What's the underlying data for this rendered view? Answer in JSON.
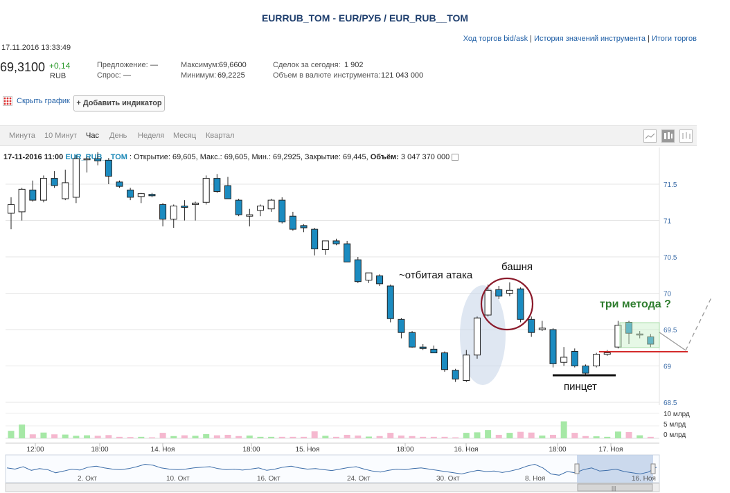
{
  "header": {
    "title": "EURRUB_TOM - EUR/РУБ / EUR_RUB__TOM",
    "links": [
      "Ход торгов bid/ask",
      "История значений инструмента",
      "Итоги торгов"
    ],
    "datetime": "17.11.2016 13:33:49"
  },
  "quote": {
    "price": "69,3100",
    "change": "+0,14",
    "currency": "RUB",
    "offer_label": "Предложение:",
    "offer_value": "—",
    "demand_label": "Спрос:",
    "demand_value": "—",
    "max_label": "Максимум:",
    "max_value": "69,6600",
    "min_label": "Минимум:",
    "min_value": "69,2225",
    "deals_label": "Сделок за сегодня:",
    "deals_value": "1 902",
    "volume_label": "Объем в валюте инструмента:",
    "volume_value": "121 043 000"
  },
  "toolbar": {
    "hide_chart": "Скрыть график",
    "add_indicator": "+ Добавить индикатор"
  },
  "tabs": [
    "Минута",
    "10 Минут",
    "Час",
    "День",
    "Неделя",
    "Месяц",
    "Квартал"
  ],
  "active_tab": "Час",
  "ohlc_line": {
    "date": "17-11-2016 11:00",
    "instrument": "EUR_RUB__TOM",
    "text": ": Открытие: 69,605, Макс.: 69,605, Мин.: 69,2925, Закрытие: 69,445,",
    "volume_label": "Объём:",
    "volume_value": "3 047 370 000"
  },
  "annotations": {
    "repelled_attack": "~отбитая атака",
    "tower": "башня",
    "three_methods": "три метода ?",
    "tweezer": "пинцет"
  },
  "colors": {
    "up_fill": "#ffffff",
    "down_fill": "#1b8bc0",
    "candle_stroke": "#222222",
    "vol_up": "#a6e8a6",
    "vol_down": "#f5b8cf",
    "annotation_green": "#2e7d2e",
    "support_line": "#d42a2a",
    "circle": "#8b1a2b",
    "ellipse": "#c5d3e8",
    "navigator_line": "#3b6ca8"
  },
  "chart_data": {
    "type": "candlestick",
    "timeframe": "1 hour",
    "ylim": [
      68.5,
      72
    ],
    "y_ticks": [
      "71.5",
      "71",
      "70.5",
      "70",
      "69.5",
      "69",
      "68.5"
    ],
    "x_tick_labels": [
      "12:00",
      "18:00",
      "14. Ноя",
      "18:00",
      "15. Ноя",
      "18:00",
      "16. Ноя",
      "18:00",
      "17. Ноя"
    ],
    "volume_axis_labels": [
      "10 млрд",
      "5 млрд",
      "0 млрд"
    ],
    "navigator_labels": [
      "2. Окт",
      "10. Окт",
      "16. Окт",
      "24. Окт",
      "30. Окт",
      "8. Ноя",
      "16. Ноя"
    ],
    "candles": [
      {
        "o": 71.1,
        "h": 71.32,
        "l": 70.88,
        "c": 71.22
      },
      {
        "o": 71.12,
        "h": 71.45,
        "l": 71.0,
        "c": 71.43
      },
      {
        "o": 71.42,
        "h": 71.55,
        "l": 71.26,
        "c": 71.28
      },
      {
        "o": 71.28,
        "h": 71.62,
        "l": 71.25,
        "c": 71.58
      },
      {
        "o": 71.58,
        "h": 71.68,
        "l": 71.45,
        "c": 71.48
      },
      {
        "o": 71.3,
        "h": 71.7,
        "l": 71.28,
        "c": 71.52
      },
      {
        "o": 71.32,
        "h": 71.9,
        "l": 71.24,
        "c": 71.85
      },
      {
        "o": 71.85,
        "h": 71.88,
        "l": 71.66,
        "c": 71.85
      },
      {
        "o": 71.85,
        "h": 71.94,
        "l": 71.76,
        "c": 71.82
      },
      {
        "o": 71.83,
        "h": 71.86,
        "l": 71.5,
        "c": 71.61
      },
      {
        "o": 71.53,
        "h": 71.55,
        "l": 71.45,
        "c": 71.47
      },
      {
        "o": 71.42,
        "h": 71.45,
        "l": 71.28,
        "c": 71.32
      },
      {
        "o": 71.33,
        "h": 71.38,
        "l": 71.24,
        "c": 71.37
      },
      {
        "o": 71.36,
        "h": 71.38,
        "l": 71.32,
        "c": 71.34
      },
      {
        "o": 71.22,
        "h": 71.24,
        "l": 70.92,
        "c": 71.02
      },
      {
        "o": 71.02,
        "h": 71.22,
        "l": 70.9,
        "c": 71.2
      },
      {
        "o": 71.2,
        "h": 71.28,
        "l": 71.0,
        "c": 71.18
      },
      {
        "o": 71.22,
        "h": 71.26,
        "l": 71.0,
        "c": 71.24
      },
      {
        "o": 71.25,
        "h": 71.62,
        "l": 71.22,
        "c": 71.58
      },
      {
        "o": 71.58,
        "h": 71.64,
        "l": 71.38,
        "c": 71.4
      },
      {
        "o": 71.48,
        "h": 71.6,
        "l": 71.3,
        "c": 71.3
      },
      {
        "o": 71.28,
        "h": 71.3,
        "l": 71.06,
        "c": 71.08
      },
      {
        "o": 71.06,
        "h": 71.16,
        "l": 70.92,
        "c": 71.08
      },
      {
        "o": 71.14,
        "h": 71.22,
        "l": 71.06,
        "c": 71.2
      },
      {
        "o": 71.16,
        "h": 71.3,
        "l": 71.12,
        "c": 71.28
      },
      {
        "o": 71.28,
        "h": 71.32,
        "l": 70.96,
        "c": 70.98
      },
      {
        "o": 71.06,
        "h": 71.12,
        "l": 70.86,
        "c": 70.88
      },
      {
        "o": 70.93,
        "h": 70.95,
        "l": 70.84,
        "c": 70.9
      },
      {
        "o": 70.88,
        "h": 70.9,
        "l": 70.52,
        "c": 70.61
      },
      {
        "o": 70.6,
        "h": 70.7,
        "l": 70.53,
        "c": 70.72
      },
      {
        "o": 70.72,
        "h": 70.75,
        "l": 70.66,
        "c": 70.68
      },
      {
        "o": 70.68,
        "h": 70.72,
        "l": 70.46,
        "c": 70.43
      },
      {
        "o": 70.46,
        "h": 70.5,
        "l": 70.14,
        "c": 70.16
      },
      {
        "o": 70.18,
        "h": 70.26,
        "l": 70.14,
        "c": 70.28
      },
      {
        "o": 70.24,
        "h": 70.26,
        "l": 70.1,
        "c": 70.13
      },
      {
        "o": 70.1,
        "h": 70.12,
        "l": 69.6,
        "c": 69.65
      },
      {
        "o": 69.64,
        "h": 69.66,
        "l": 69.38,
        "c": 69.46
      },
      {
        "o": 69.46,
        "h": 69.48,
        "l": 69.25,
        "c": 69.26
      },
      {
        "o": 69.26,
        "h": 69.3,
        "l": 69.22,
        "c": 69.24
      },
      {
        "o": 69.23,
        "h": 69.28,
        "l": 69.2,
        "c": 69.18
      },
      {
        "o": 69.18,
        "h": 69.2,
        "l": 68.92,
        "c": 68.95
      },
      {
        "o": 68.94,
        "h": 68.96,
        "l": 68.78,
        "c": 68.82
      },
      {
        "o": 68.8,
        "h": 69.22,
        "l": 68.78,
        "c": 69.15
      },
      {
        "o": 69.15,
        "h": 69.68,
        "l": 69.1,
        "c": 69.66
      },
      {
        "o": 69.7,
        "h": 70.12,
        "l": 69.68,
        "c": 70.04
      },
      {
        "o": 70.05,
        "h": 70.1,
        "l": 69.92,
        "c": 69.96
      },
      {
        "o": 70.0,
        "h": 70.15,
        "l": 69.96,
        "c": 70.04
      },
      {
        "o": 70.06,
        "h": 70.08,
        "l": 69.6,
        "c": 69.64
      },
      {
        "o": 69.64,
        "h": 69.68,
        "l": 69.4,
        "c": 69.46
      },
      {
        "o": 69.5,
        "h": 69.62,
        "l": 69.48,
        "c": 69.52
      },
      {
        "o": 69.5,
        "h": 69.52,
        "l": 68.98,
        "c": 69.03
      },
      {
        "o": 69.05,
        "h": 69.26,
        "l": 69.0,
        "c": 69.12
      },
      {
        "o": 69.2,
        "h": 69.24,
        "l": 68.98,
        "c": 69.0
      },
      {
        "o": 69.0,
        "h": 69.02,
        "l": 68.88,
        "c": 68.9
      },
      {
        "o": 69.0,
        "h": 69.18,
        "l": 68.98,
        "c": 69.16
      },
      {
        "o": 69.16,
        "h": 69.22,
        "l": 69.14,
        "c": 69.18
      },
      {
        "o": 69.26,
        "h": 69.62,
        "l": 69.24,
        "c": 69.56
      },
      {
        "o": 69.6,
        "h": 69.62,
        "l": 69.3,
        "c": 69.45
      },
      {
        "o": 69.44,
        "h": 69.48,
        "l": 69.38,
        "c": 69.44
      },
      {
        "o": 69.4,
        "h": 69.44,
        "l": 69.26,
        "c": 69.3
      }
    ],
    "volumes_bn": [
      3.0,
      5.5,
      1.6,
      2.3,
      1.6,
      1.5,
      1.0,
      1.2,
      1.0,
      1.3,
      0.6,
      0.5,
      0.6,
      0.4,
      2.2,
      0.9,
      1.2,
      1.0,
      1.7,
      1.2,
      1.4,
      0.9,
      1.1,
      0.6,
      0.6,
      0.6,
      0.6,
      0.6,
      2.8,
      1.0,
      0.6,
      1.4,
      1.1,
      0.7,
      0.9,
      2.2,
      1.1,
      0.9,
      0.6,
      0.6,
      0.6,
      0.4,
      2.2,
      2.4,
      3.3,
      1.4,
      2.2,
      2.6,
      2.3,
      1.1,
      1.4,
      6.8,
      2.2,
      0.9,
      0.8,
      0.6,
      2.7,
      2.5,
      1.2,
      0.6
    ],
    "navigator_series": [
      0.55,
      0.5,
      0.6,
      0.45,
      0.52,
      0.48,
      0.35,
      0.42,
      0.5,
      0.46,
      0.58,
      0.62,
      0.55,
      0.5,
      0.48,
      0.52,
      0.6,
      0.7,
      0.66,
      0.55,
      0.5,
      0.48,
      0.5,
      0.55,
      0.58,
      0.6,
      0.52,
      0.48,
      0.5,
      0.46,
      0.5,
      0.55,
      0.45,
      0.5,
      0.58,
      0.62,
      0.55,
      0.5,
      0.52,
      0.48,
      0.44,
      0.5,
      0.56,
      0.6,
      0.5,
      0.42,
      0.38,
      0.45,
      0.5,
      0.48,
      0.52,
      0.55,
      0.5,
      0.45,
      0.4,
      0.35,
      0.3,
      0.38,
      0.45,
      0.4,
      0.42,
      0.36,
      0.42,
      0.5,
      0.62,
      0.7,
      0.55,
      0.3,
      0.25,
      0.4,
      0.35,
      0.48,
      0.55,
      0.42,
      0.45,
      0.5,
      0.4,
      0.35,
      0.3,
      0.38,
      0.58
    ]
  }
}
